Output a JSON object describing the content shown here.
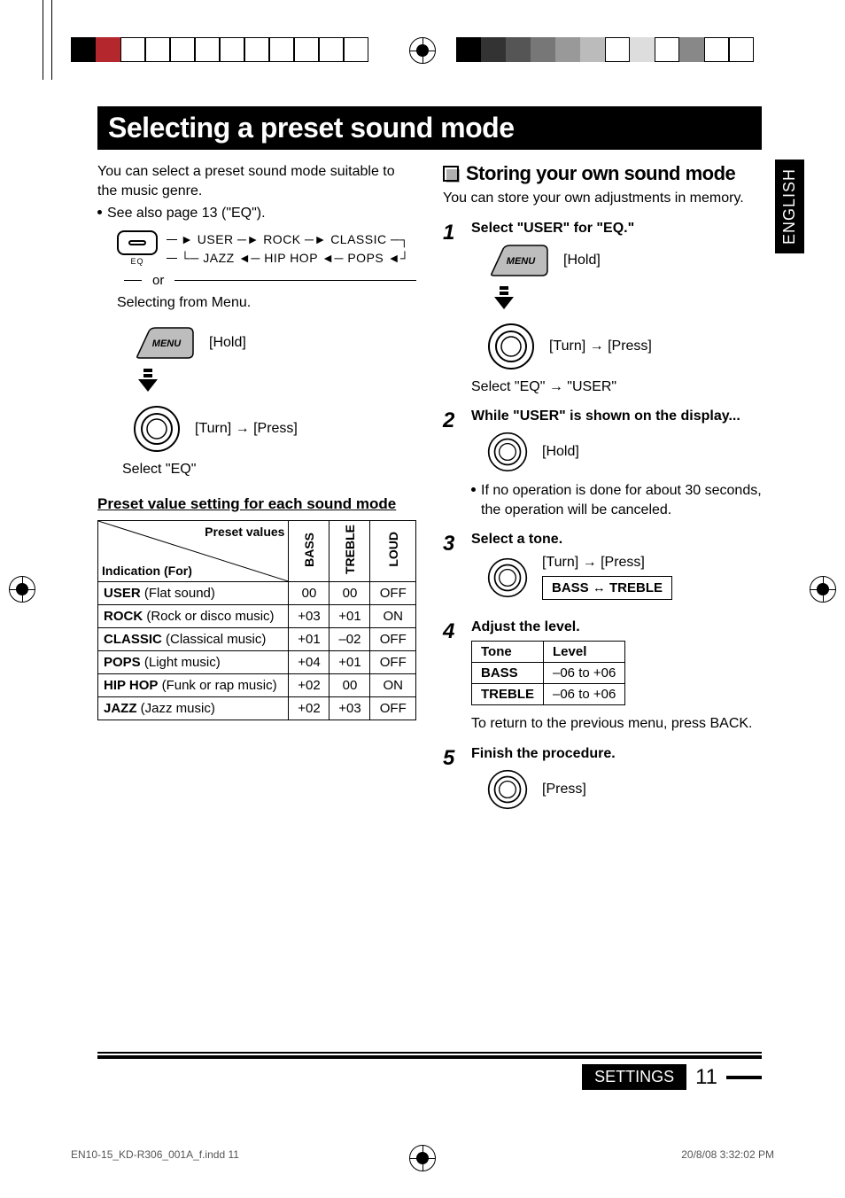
{
  "title": "Selecting a preset sound mode",
  "intro": "You can select a preset sound mode suitable to the music genre.",
  "see_also": "See also page 13 (\"EQ\").",
  "eq_label": "EQ",
  "flow_top": "USER → ROCK → CLASSIC",
  "flow_bot": "JAZZ ← HIP HOP ← POPS",
  "or": "or",
  "selecting_from_menu": "Selecting from Menu.",
  "menu_label": "MENU",
  "hold": "[Hold]",
  "turn_press": "[Turn] → [Press]",
  "select_eq": "Select \"EQ\"",
  "preset_heading": "Preset value setting for each sound mode",
  "preset_table": {
    "header_preset": "Preset values",
    "header_indication": "Indication (For)",
    "col_bass": "BASS",
    "col_treble": "TREBLE",
    "col_loud": "LOUD",
    "rows": [
      {
        "name": "USER",
        "desc": "(Flat sound)",
        "bass": "00",
        "treble": "00",
        "loud": "OFF"
      },
      {
        "name": "ROCK",
        "desc": "(Rock or disco music)",
        "bass": "+03",
        "treble": "+01",
        "loud": "ON"
      },
      {
        "name": "CLASSIC",
        "desc": "(Classical music)",
        "bass": "+01",
        "treble": "–02",
        "loud": "OFF"
      },
      {
        "name": "POPS",
        "desc": "(Light music)",
        "bass": "+04",
        "treble": "+01",
        "loud": "OFF"
      },
      {
        "name": "HIP HOP",
        "desc": "(Funk or rap music)",
        "bass": "+02",
        "treble": "00",
        "loud": "ON"
      },
      {
        "name": "JAZZ",
        "desc": "(Jazz music)",
        "bass": "+02",
        "treble": "+03",
        "loud": "OFF"
      }
    ]
  },
  "storing_title": "Storing your own sound mode",
  "storing_intro": "You can store your own adjustments in memory.",
  "step1_title": "Select \"USER\" for \"EQ.\"",
  "step1_select": "Select \"EQ\" → \"USER\"",
  "step2_title": "While \"USER\" is shown on the display...",
  "step2_note": "If no operation is done for about 30 seconds, the operation will be canceled.",
  "step3_title": "Select a tone.",
  "step3_toggle": "BASS ↔ TREBLE",
  "step4_title": "Adjust the level.",
  "level_table": {
    "h_tone": "Tone",
    "h_level": "Level",
    "rows": [
      {
        "tone": "BASS",
        "level": "–06 to +06"
      },
      {
        "tone": "TREBLE",
        "level": "–06 to +06"
      }
    ]
  },
  "step4_note": "To return to the previous menu, press BACK.",
  "step5_title": "Finish the procedure.",
  "press": "[Press]",
  "side_tab": "ENGLISH",
  "footer_label": "SETTINGS",
  "page_number": "11",
  "slug_left": "EN10-15_KD-R306_001A_f.indd   11",
  "slug_right": "20/8/08   3:32:02 PM",
  "colors": {
    "sq": [
      "#000000",
      "#b3272d",
      "#3a3a3a",
      "#555555",
      "#777777",
      "#999999",
      "#000000",
      "#333333",
      "#555555",
      "#777777",
      "#bbbbbb",
      "#878787"
    ]
  }
}
